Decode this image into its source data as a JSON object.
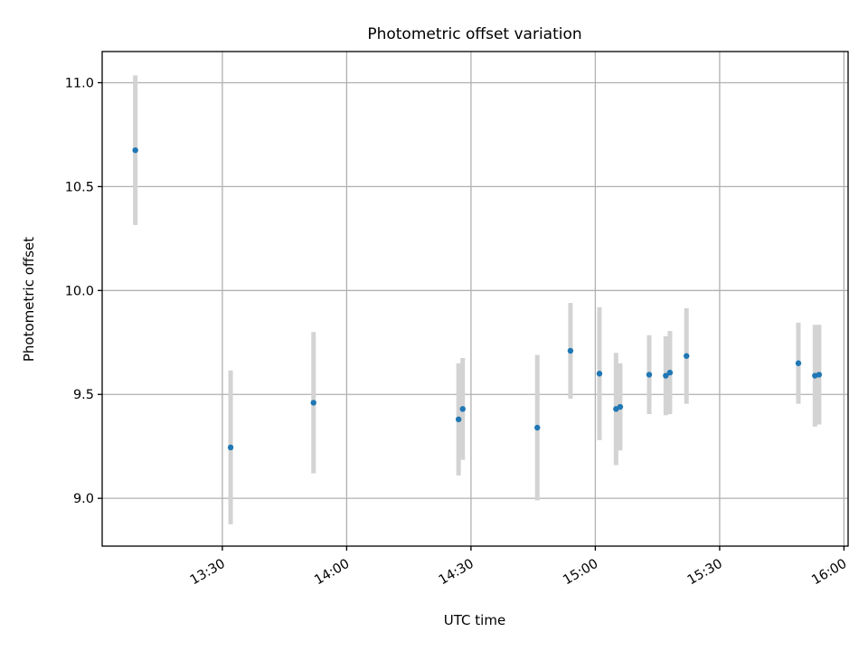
{
  "chart_data": {
    "type": "scatter",
    "title": "Photometric offset variation",
    "xlabel": "UTC time",
    "ylabel": "Photometric offset",
    "x_ticks": [
      "13:30",
      "14:00",
      "14:30",
      "15:00",
      "15:30",
      "16:00"
    ],
    "y_ticks": [
      "9.0",
      "9.5",
      "10.0",
      "10.5",
      "11.0"
    ],
    "xlim": [
      "13:01",
      "16:01"
    ],
    "ylim": [
      8.77,
      11.15
    ],
    "grid": true,
    "marker_color": "#1f77b4",
    "errorbar_color": "#d3d3d3",
    "points": [
      {
        "x": "13:09",
        "y": 10.675,
        "err": 0.36
      },
      {
        "x": "13:32",
        "y": 9.245,
        "err": 0.37
      },
      {
        "x": "13:52",
        "y": 9.46,
        "err": 0.34
      },
      {
        "x": "14:27",
        "y": 9.38,
        "err": 0.27
      },
      {
        "x": "14:28",
        "y": 9.43,
        "err": 0.245
      },
      {
        "x": "14:46",
        "y": 9.34,
        "err": 0.35
      },
      {
        "x": "14:54",
        "y": 9.71,
        "err": 0.23
      },
      {
        "x": "15:01",
        "y": 9.6,
        "err": 0.32
      },
      {
        "x": "15:05",
        "y": 9.43,
        "err": 0.27
      },
      {
        "x": "15:06",
        "y": 9.44,
        "err": 0.21
      },
      {
        "x": "15:13",
        "y": 9.595,
        "err": 0.19
      },
      {
        "x": "15:17",
        "y": 9.59,
        "err": 0.19
      },
      {
        "x": "15:18",
        "y": 9.605,
        "err": 0.2
      },
      {
        "x": "15:22",
        "y": 9.685,
        "err": 0.23
      },
      {
        "x": "15:49",
        "y": 9.65,
        "err": 0.195
      },
      {
        "x": "15:53",
        "y": 9.59,
        "err": 0.245
      },
      {
        "x": "15:54",
        "y": 9.595,
        "err": 0.24
      }
    ]
  }
}
